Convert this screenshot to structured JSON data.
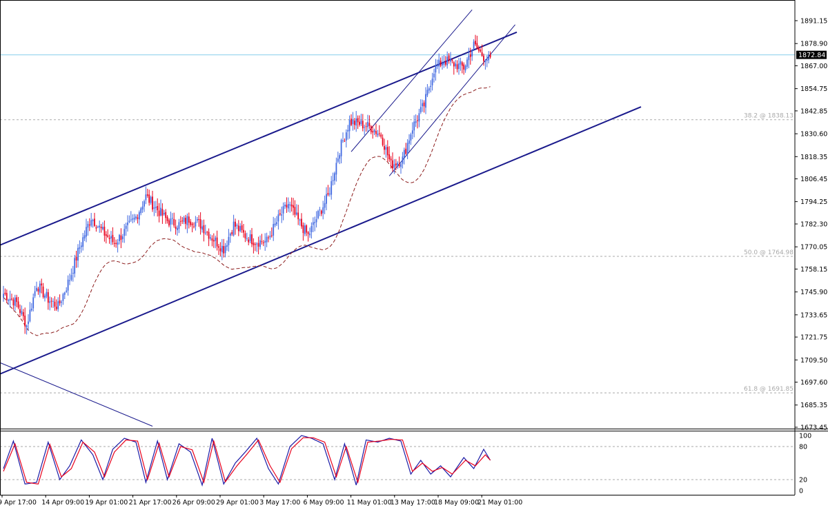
{
  "chart_data": [
    {
      "type": "candlestick",
      "price_axis": {
        "ticks": [
          "1891.15",
          "1878.90",
          "1867.00",
          "1854.75",
          "1842.85",
          "1830.60",
          "1818.35",
          "1806.45",
          "1794.25",
          "1782.30",
          "1770.05",
          "1758.15",
          "1745.90",
          "1733.65",
          "1721.75",
          "1709.50",
          "1697.60",
          "1685.35",
          "1673.45"
        ],
        "ylim": [
          1673.45,
          1897.0
        ]
      },
      "current_price": {
        "value": 1872.84,
        "label": "1872.84",
        "line_color": "#87ceeb",
        "label_bg": "#000000"
      },
      "fibonacci_levels": [
        {
          "label": "38.2 @ 1838.13",
          "value": 1838.13
        },
        {
          "label": "50.0 @ 1764.98",
          "value": 1764.98
        },
        {
          "label": "61.8 @ 1691.85",
          "value": 1691.85
        }
      ],
      "time_axis": {
        "labels": [
          "9 Apr 17:00",
          "14 Apr 09:00",
          "19 Apr 01:00",
          "21 Apr 17:00",
          "26 Apr 09:00",
          "29 Apr 01:00",
          "3 May 17:00",
          "6 May 09:00",
          "11 May 01:00",
          "13 May 17:00",
          "18 May 09:00",
          "21 May 01:00"
        ]
      },
      "candles": {
        "bull_color": "#4169e1",
        "bear_color": "#e8001c",
        "anchors": [
          [
            0,
            1745
          ],
          [
            8,
            1740
          ],
          [
            14,
            1728
          ],
          [
            20,
            1750
          ],
          [
            27,
            1742
          ],
          [
            33,
            1738
          ],
          [
            40,
            1753
          ],
          [
            46,
            1770
          ],
          [
            53,
            1786
          ],
          [
            60,
            1778
          ],
          [
            67,
            1772
          ],
          [
            73,
            1778
          ],
          [
            80,
            1786
          ],
          [
            86,
            1797
          ],
          [
            93,
            1790
          ],
          [
            99,
            1784
          ],
          [
            106,
            1782
          ],
          [
            112,
            1785
          ],
          [
            119,
            1782
          ],
          [
            126,
            1775
          ],
          [
            133,
            1769
          ],
          [
            139,
            1782
          ],
          [
            146,
            1776
          ],
          [
            152,
            1773
          ],
          [
            159,
            1773
          ],
          [
            166,
            1785
          ],
          [
            172,
            1793
          ],
          [
            178,
            1784
          ],
          [
            184,
            1776
          ],
          [
            190,
            1787
          ],
          [
            196,
            1797
          ],
          [
            203,
            1822
          ],
          [
            209,
            1837
          ],
          [
            215,
            1836
          ],
          [
            222,
            1834
          ],
          [
            228,
            1830
          ],
          [
            234,
            1814
          ],
          [
            241,
            1817
          ],
          [
            247,
            1834
          ],
          [
            254,
            1846
          ],
          [
            260,
            1865
          ],
          [
            266,
            1870
          ],
          [
            272,
            1868
          ],
          [
            278,
            1866
          ],
          [
            284,
            1878
          ],
          [
            290,
            1872
          ],
          [
            294,
            1870
          ]
        ]
      },
      "moving_average": {
        "color": "#8b1a1a",
        "style": "dashed"
      },
      "channel_color": "#1a1a8c"
    },
    {
      "type": "line",
      "indicator": "stochastic",
      "levels_axis": [
        "100",
        "80",
        "20",
        "0"
      ],
      "ylim": [
        0,
        100
      ],
      "dotted_levels": [
        80,
        20
      ],
      "series": [
        {
          "color": "#1a1aa6",
          "anchors": [
            [
              0,
              40
            ],
            [
              6,
              90
            ],
            [
              13,
              12
            ],
            [
              20,
              15
            ],
            [
              27,
              88
            ],
            [
              34,
              20
            ],
            [
              40,
              45
            ],
            [
              47,
              92
            ],
            [
              54,
              65
            ],
            [
              60,
              20
            ],
            [
              66,
              75
            ],
            [
              73,
              95
            ],
            [
              80,
              88
            ],
            [
              86,
              15
            ],
            [
              93,
              90
            ],
            [
              99,
              20
            ],
            [
              106,
              85
            ],
            [
              113,
              70
            ],
            [
              120,
              10
            ],
            [
              126,
              95
            ],
            [
              133,
              12
            ],
            [
              140,
              50
            ],
            [
              146,
              70
            ],
            [
              153,
              95
            ],
            [
              160,
              40
            ],
            [
              166,
              12
            ],
            [
              173,
              80
            ],
            [
              180,
              100
            ],
            [
              186,
              95
            ],
            [
              193,
              85
            ],
            [
              200,
              20
            ],
            [
              206,
              85
            ],
            [
              213,
              10
            ],
            [
              219,
              92
            ],
            [
              226,
              88
            ],
            [
              233,
              95
            ],
            [
              240,
              90
            ],
            [
              246,
              30
            ],
            [
              252,
              55
            ],
            [
              258,
              30
            ],
            [
              264,
              45
            ],
            [
              270,
              25
            ],
            [
              278,
              60
            ],
            [
              284,
              40
            ],
            [
              290,
              75
            ],
            [
              294,
              55
            ]
          ]
        },
        {
          "color": "#e8001c",
          "anchors": [
            [
              0,
              35
            ],
            [
              7,
              85
            ],
            [
              14,
              15
            ],
            [
              21,
              12
            ],
            [
              28,
              84
            ],
            [
              35,
              25
            ],
            [
              41,
              40
            ],
            [
              48,
              88
            ],
            [
              55,
              70
            ],
            [
              61,
              25
            ],
            [
              67,
              70
            ],
            [
              74,
              92
            ],
            [
              81,
              90
            ],
            [
              87,
              20
            ],
            [
              94,
              86
            ],
            [
              100,
              25
            ],
            [
              107,
              80
            ],
            [
              114,
              74
            ],
            [
              121,
              15
            ],
            [
              127,
              90
            ],
            [
              134,
              16
            ],
            [
              141,
              45
            ],
            [
              147,
              66
            ],
            [
              154,
              92
            ],
            [
              161,
              45
            ],
            [
              167,
              15
            ],
            [
              174,
              76
            ],
            [
              181,
              96
            ],
            [
              187,
              96
            ],
            [
              194,
              88
            ],
            [
              201,
              25
            ],
            [
              207,
              80
            ],
            [
              214,
              15
            ],
            [
              220,
              88
            ],
            [
              227,
              90
            ],
            [
              234,
              93
            ],
            [
              241,
              92
            ],
            [
              247,
              35
            ],
            [
              253,
              50
            ],
            [
              259,
              35
            ],
            [
              265,
              42
            ],
            [
              271,
              30
            ],
            [
              279,
              55
            ],
            [
              285,
              45
            ],
            [
              291,
              65
            ],
            [
              295,
              52
            ]
          ]
        }
      ]
    }
  ]
}
